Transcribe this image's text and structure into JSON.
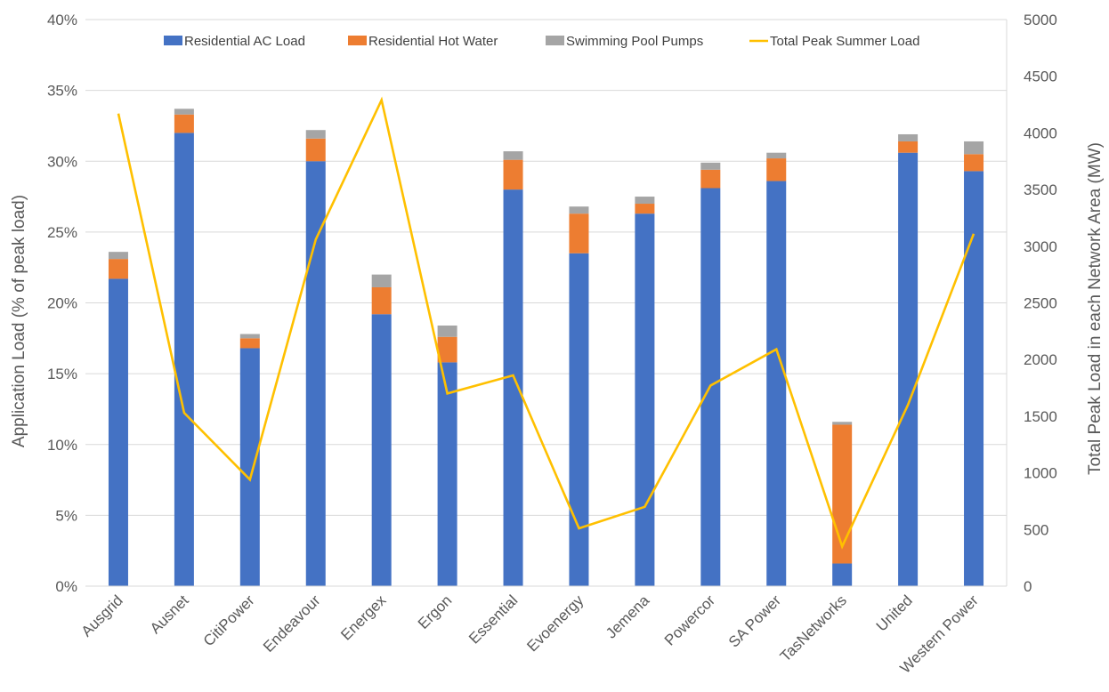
{
  "chart_data": {
    "type": "bar",
    "stacked": true,
    "categories": [
      "Ausgrid",
      "Ausnet",
      "CitiPower",
      "Endeavour",
      "Energex",
      "Ergon",
      "Essential",
      "Evoenergy",
      "Jemena",
      "Powercor",
      "SA Power",
      "TasNetworks",
      "United",
      "Western Power"
    ],
    "series": [
      {
        "name": "Residential AC Load",
        "kind": "bar",
        "axis": "left",
        "color": "#4472c4",
        "values": [
          21.7,
          32.0,
          16.8,
          30.0,
          19.2,
          15.8,
          28.0,
          23.5,
          26.3,
          28.1,
          28.6,
          1.6,
          30.6,
          29.3
        ]
      },
      {
        "name": "Residential Hot Water",
        "kind": "bar",
        "axis": "left",
        "color": "#ed7d31",
        "values": [
          1.4,
          1.3,
          0.7,
          1.6,
          1.9,
          1.8,
          2.1,
          2.8,
          0.7,
          1.3,
          1.6,
          9.8,
          0.8,
          1.2
        ]
      },
      {
        "name": "Swimming Pool Pumps",
        "kind": "bar",
        "axis": "left",
        "color": "#a5a5a5",
        "values": [
          0.5,
          0.4,
          0.3,
          0.6,
          0.9,
          0.8,
          0.6,
          0.5,
          0.5,
          0.5,
          0.4,
          0.2,
          0.5,
          0.9
        ]
      },
      {
        "name": "Total Peak Summer Load",
        "kind": "line",
        "axis": "right",
        "color": "#ffc000",
        "values": [
          4170,
          1530,
          940,
          3060,
          4290,
          1700,
          1860,
          510,
          700,
          1770,
          2090,
          350,
          1600,
          3110
        ]
      }
    ],
    "ylabel": "Application Load (% of peak load)",
    "y2label": "Total Peak Load in each Network Area (MW)",
    "ylim": [
      0,
      40
    ],
    "y2lim": [
      0,
      5000
    ],
    "yticks": [
      "0%",
      "5%",
      "10%",
      "15%",
      "20%",
      "25%",
      "30%",
      "35%",
      "40%"
    ],
    "y2ticks": [
      "0",
      "500",
      "1000",
      "1500",
      "2000",
      "2500",
      "3000",
      "3500",
      "4000",
      "4500",
      "5000"
    ],
    "grid": true,
    "legend": "top-center"
  }
}
